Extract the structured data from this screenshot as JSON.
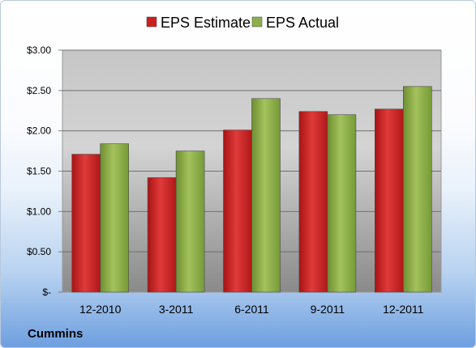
{
  "company": "Cummins",
  "chart_data": {
    "type": "bar",
    "categories": [
      "12-2010",
      "3-2011",
      "6-2011",
      "9-2011",
      "12-2011"
    ],
    "series": [
      {
        "name": "EPS Estimate",
        "color": "#cc1f1f",
        "values": [
          1.71,
          1.42,
          2.01,
          2.24,
          2.27
        ]
      },
      {
        "name": "EPS Actual",
        "color": "#8db04a",
        "values": [
          1.84,
          1.75,
          2.4,
          2.2,
          2.55
        ]
      }
    ],
    "ylim": [
      0,
      3.0
    ],
    "yticks": [
      0,
      0.5,
      1.0,
      1.5,
      2.0,
      2.5,
      3.0
    ],
    "ytick_labels": [
      "$-",
      "$0.50",
      "$1.00",
      "$1.50",
      "$2.00",
      "$2.50",
      "$3.00"
    ],
    "grid": true,
    "legend_position": "top-center"
  }
}
